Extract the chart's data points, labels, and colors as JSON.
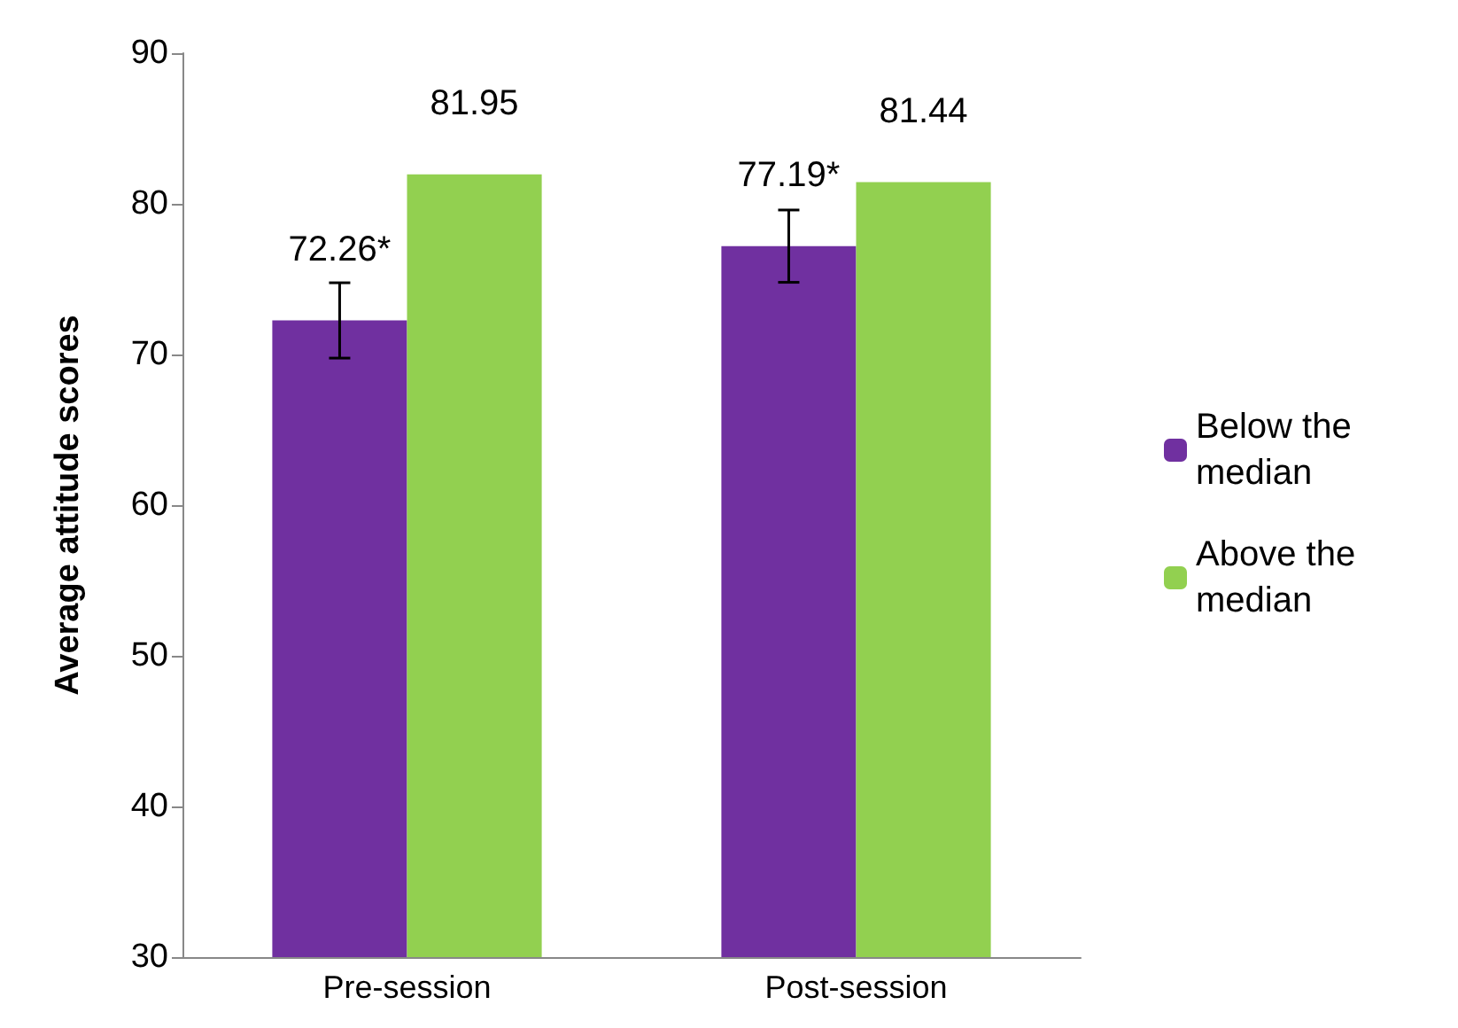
{
  "chart_data": {
    "type": "bar",
    "ylabel": "Average attitude scores",
    "categories": [
      "Pre-session",
      "Post-session"
    ],
    "series": [
      {
        "name": "Below the median",
        "color": "#7030a0",
        "values": [
          72.26,
          77.19
        ],
        "errors": [
          2.5,
          2.4
        ],
        "value_labels": [
          "72.26*",
          "77.19*"
        ]
      },
      {
        "name": "Above the median",
        "color": "#92d050",
        "values": [
          81.95,
          81.44
        ],
        "errors": [
          null,
          null
        ],
        "value_labels": [
          "81.95",
          "81.44"
        ]
      }
    ],
    "ylim": [
      30,
      90
    ],
    "yticks": [
      30,
      40,
      50,
      60,
      70,
      80,
      90
    ],
    "grid": false,
    "legend": "right"
  }
}
